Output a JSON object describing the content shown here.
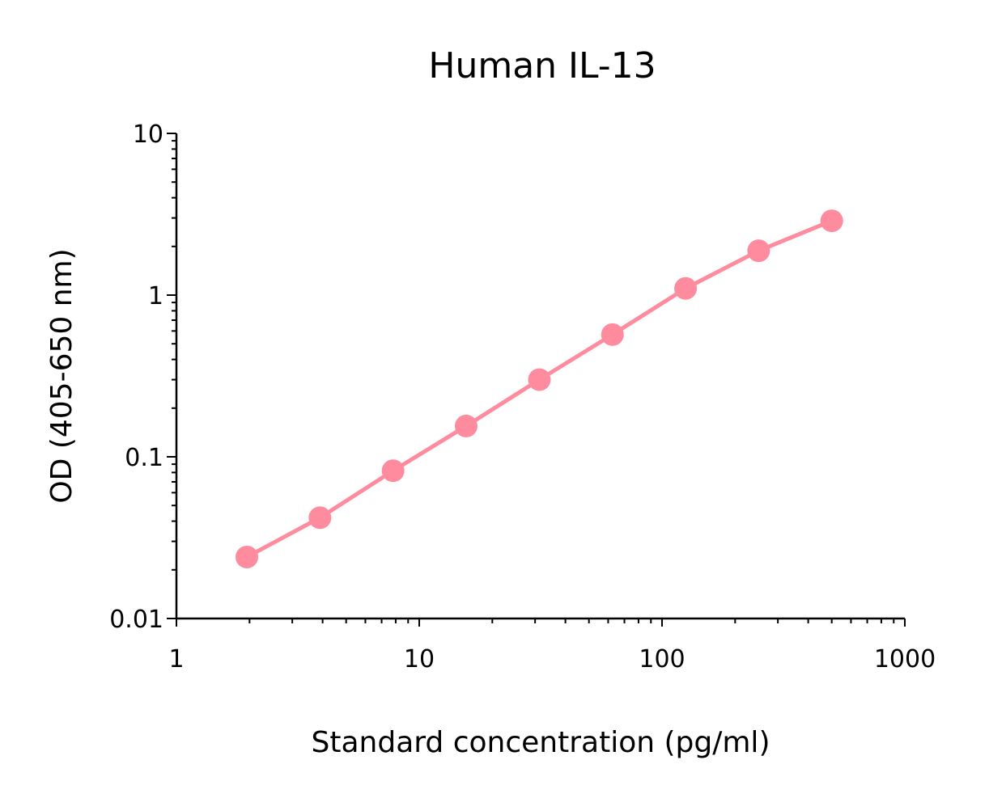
{
  "chart_data": {
    "type": "line",
    "title": "Human IL-13",
    "xlabel": "Standard concentration (pg/ml)",
    "ylabel": "OD (405-650 nm)",
    "xscale": "log",
    "yscale": "log",
    "xlim": [
      1,
      1000
    ],
    "ylim": [
      0.01,
      10
    ],
    "xticks": [
      "1",
      "10",
      "100",
      "1000"
    ],
    "yticks": [
      "0.01",
      "0.1",
      "1",
      "10"
    ],
    "grid": false,
    "legend": "none",
    "color": "#FF8C9E",
    "series": [
      {
        "x": [
          1.95,
          3.9,
          7.8,
          15.6,
          31.25,
          62.5,
          125,
          250,
          500
        ],
        "y": [
          0.024,
          0.042,
          0.082,
          0.155,
          0.3,
          0.57,
          1.1,
          1.88,
          2.88
        ]
      }
    ]
  }
}
